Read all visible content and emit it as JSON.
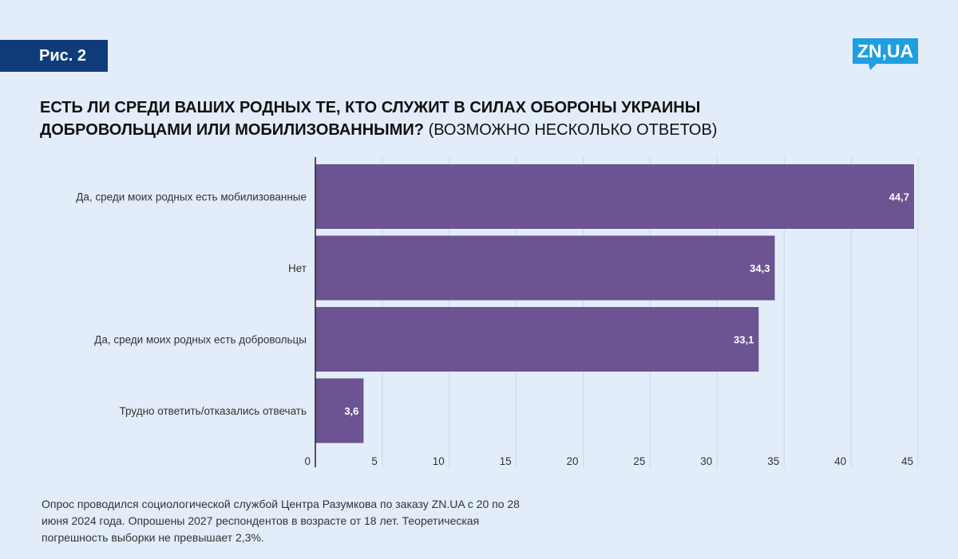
{
  "figure_label": "Рис. 2",
  "logo": {
    "text": "ZN,UA",
    "color": "#1f9fe0"
  },
  "title": {
    "bold": "ЕСТЬ ЛИ СРЕДИ ВАШИХ РОДНЫХ ТЕ, КТО СЛУЖИТ В СИЛАХ ОБОРОНЫ УКРАИНЫ ДОБРОВОЛЬЦАМИ ИЛИ МОБИЛИЗОВАННЫМИ?",
    "note": "(ВОЗМОЖНО НЕСКОЛЬКО ОТВЕТОВ)"
  },
  "chart_data": {
    "type": "bar",
    "orientation": "horizontal",
    "categories": [
      "Да, среди моих родных есть мобилизованные",
      "Нет",
      "Да, среди моих родных есть добровольцы",
      "Трудно ответить/отказались отвечать"
    ],
    "values": [
      44.7,
      34.3,
      33.1,
      3.6
    ],
    "value_labels": [
      "44,7",
      "34,3",
      "33,1",
      "3,6"
    ],
    "xlim": [
      0,
      45
    ],
    "xticks": [
      0,
      5,
      10,
      15,
      20,
      25,
      30,
      35,
      40,
      45
    ],
    "xtick_labels": [
      "0",
      "5",
      "10",
      "15",
      "20",
      "25",
      "30",
      "35",
      "40",
      "45"
    ],
    "grid": true,
    "bar_color": "#6b5491",
    "grid_color": "#c9d6e6",
    "axis_color": "#222222"
  },
  "footnote": "Опрос проводился социологической службой Центра Разумкова по заказу ZN.UA с 20 по 28 июня 2024 года. Опрошены 2027 респондентов в возрасте от 18 лет. Теоретическая погрешность выборки не превышает 2,3%."
}
